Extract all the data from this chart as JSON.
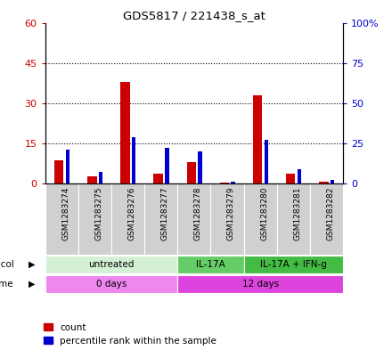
{
  "title": "GDS5817 / 221438_s_at",
  "samples": [
    "GSM1283274",
    "GSM1283275",
    "GSM1283276",
    "GSM1283277",
    "GSM1283278",
    "GSM1283279",
    "GSM1283280",
    "GSM1283281",
    "GSM1283282"
  ],
  "count_values": [
    8.5,
    2.5,
    38,
    3.5,
    8,
    0.3,
    33,
    3.5,
    0.5
  ],
  "percentile_values": [
    21,
    7,
    29,
    22,
    20,
    1,
    27,
    9,
    2
  ],
  "ylim_left": [
    0,
    60
  ],
  "ylim_right": [
    0,
    100
  ],
  "yticks_left": [
    0,
    15,
    30,
    45,
    60
  ],
  "yticks_right": [
    0,
    25,
    50,
    75,
    100
  ],
  "ytick_labels_left": [
    "0",
    "15",
    "30",
    "45",
    "60"
  ],
  "ytick_labels_right": [
    "0",
    "25",
    "50",
    "75",
    "100%"
  ],
  "count_color": "#cc0000",
  "percentile_color": "#0000cc",
  "bar_bg_color": "#d0d0d0",
  "protocol_groups": [
    {
      "label": "untreated",
      "start": 0,
      "end": 4,
      "color": "#d4f0d4"
    },
    {
      "label": "IL-17A",
      "start": 4,
      "end": 6,
      "color": "#66cc66"
    },
    {
      "label": "IL-17A + IFN-g",
      "start": 6,
      "end": 9,
      "color": "#44bb44"
    }
  ],
  "time_groups": [
    {
      "label": "0 days",
      "start": 0,
      "end": 4,
      "color": "#ee88ee"
    },
    {
      "label": "12 days",
      "start": 4,
      "end": 9,
      "color": "#dd44dd"
    }
  ],
  "legend_count_label": "count",
  "legend_percentile_label": "percentile rank within the sample",
  "count_color_label": "#cc0000",
  "percentile_color_label": "#0000cc"
}
